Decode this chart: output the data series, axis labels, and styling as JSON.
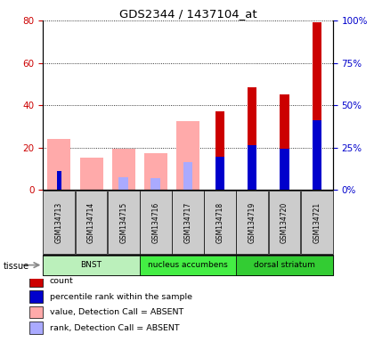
{
  "title": "GDS2344 / 1437104_at",
  "samples": [
    "GSM134713",
    "GSM134714",
    "GSM134715",
    "GSM134716",
    "GSM134717",
    "GSM134718",
    "GSM134719",
    "GSM134720",
    "GSM134721"
  ],
  "absent_value": [
    24,
    15,
    19.5,
    17.5,
    32.5,
    null,
    null,
    null,
    null
  ],
  "absent_rank": [
    null,
    null,
    6,
    5.5,
    13,
    null,
    null,
    null,
    null
  ],
  "present_value": [
    null,
    null,
    null,
    null,
    null,
    37,
    48.5,
    45,
    79
  ],
  "present_rank": [
    9,
    null,
    null,
    null,
    null,
    15.5,
    21,
    19.5,
    33
  ],
  "ylim_left": [
    0,
    80
  ],
  "ylim_right": [
    0,
    100
  ],
  "yticks_left": [
    0,
    20,
    40,
    60,
    80
  ],
  "yticks_right": [
    0,
    25,
    50,
    75,
    100
  ],
  "ytick_labels_right": [
    "0%",
    "25%",
    "50%",
    "75%",
    "100%"
  ],
  "tissue_groups": [
    {
      "label": "BNST",
      "start": 0,
      "end": 3
    },
    {
      "label": "nucleus accumbens",
      "start": 3,
      "end": 6
    },
    {
      "label": "dorsal striatum",
      "start": 6,
      "end": 9
    }
  ],
  "tissue_colors": [
    "#bbf0bb",
    "#44ee44",
    "#33cc33"
  ],
  "colors": {
    "count_present": "#cc0000",
    "rank_present": "#0000cc",
    "value_absent": "#ffaaaa",
    "rank_absent": "#aaaaff",
    "left_axis": "#cc0000",
    "right_axis": "#0000cc",
    "sample_box": "#cccccc"
  },
  "legend": [
    {
      "color": "#cc0000",
      "label": "count"
    },
    {
      "color": "#0000cc",
      "label": "percentile rank within the sample"
    },
    {
      "color": "#ffaaaa",
      "label": "value, Detection Call = ABSENT"
    },
    {
      "color": "#aaaaff",
      "label": "rank, Detection Call = ABSENT"
    }
  ]
}
